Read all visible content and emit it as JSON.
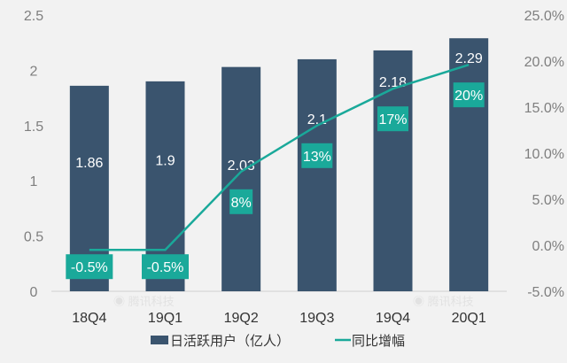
{
  "chart_data": {
    "type": "bar+line",
    "categories": [
      "18Q4",
      "19Q1",
      "19Q2",
      "19Q3",
      "19Q4",
      "20Q1"
    ],
    "series": [
      {
        "name": "日活跃用户（亿人）",
        "type": "bar",
        "axis": "left",
        "values": [
          1.86,
          1.9,
          2.03,
          2.1,
          2.18,
          2.29
        ],
        "labels": [
          "1.86",
          "1.9",
          "2.03",
          "2.1",
          "2.18",
          "2.29"
        ]
      },
      {
        "name": "同比增幅",
        "type": "line",
        "axis": "right",
        "values": [
          -0.5,
          -0.5,
          8,
          13,
          17,
          19.6
        ],
        "labels": [
          "-0.5%",
          "-0.5%",
          "8%",
          "13%",
          "17%",
          "20%"
        ]
      }
    ],
    "left_axis": {
      "ylim": [
        0,
        2.5
      ],
      "ticks": [
        "0",
        "0.5",
        "1",
        "1.5",
        "2",
        "2.5"
      ]
    },
    "right_axis": {
      "ylim": [
        -5,
        25
      ],
      "ticks": [
        "-5.0%",
        "0.0%",
        "5.0%",
        "10.0%",
        "15.0%",
        "20.0%",
        "25.0%"
      ]
    },
    "legend": {
      "placement": "bottom",
      "items": [
        "日活跃用户（亿人）",
        "同比增幅"
      ]
    },
    "grid": false,
    "colors": {
      "bar": "#3a546e",
      "line": "#1aa99a",
      "background": "#f2f2f2",
      "axis_text": "#7f7f7f"
    },
    "watermark": "腾讯科技"
  }
}
